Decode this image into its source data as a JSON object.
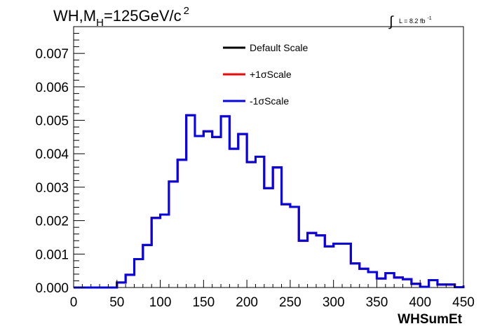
{
  "chart_data": {
    "type": "step-histogram",
    "title_prefix": "WH,M",
    "title_sub": "H",
    "title_suffix": "=125GeV/c",
    "title_sup": "2",
    "lumi_symbol": "∫",
    "lumi_text": "L = 8.2 fb",
    "lumi_sup": "-1",
    "xlabel": "WHSumEt",
    "xlim": [
      0,
      450
    ],
    "ylim": [
      0,
      0.0078
    ],
    "xticks": [
      "0",
      "50",
      "100",
      "150",
      "200",
      "250",
      "300",
      "350",
      "400",
      "450"
    ],
    "yticks": [
      "0.000",
      "0.001",
      "0.002",
      "0.003",
      "0.004",
      "0.005",
      "0.006",
      "0.007"
    ],
    "bin_width": 10,
    "bin_start": 0,
    "legend_position": "top-center",
    "series": [
      {
        "name": "Default Scale",
        "color": "#000000",
        "values": [
          0,
          0,
          0,
          0,
          0,
          0.00015,
          0.00038,
          0.00085,
          0.00127,
          0.00208,
          0.00218,
          0.00317,
          0.00382,
          0.00515,
          0.00453,
          0.00467,
          0.0045,
          0.00512,
          0.00415,
          0.00459,
          0.00375,
          0.00391,
          0.00297,
          0.00359,
          0.00249,
          0.00241,
          0.0014,
          0.00163,
          0.00156,
          0.00123,
          0.00131,
          0.00131,
          0.00072,
          0.00056,
          0.00046,
          0.00027,
          0.00043,
          0.0003,
          0.00025,
          0.00011,
          2e-05,
          0.00022,
          9e-05,
          9e-05,
          1e-05,
          6e-05,
          3e-05
        ]
      },
      {
        "name": "+1σScale",
        "color": "#ff0000",
        "values": [
          0,
          0,
          0,
          0,
          0,
          0.00015,
          0.00038,
          0.00085,
          0.00127,
          0.00208,
          0.00218,
          0.00317,
          0.00382,
          0.00515,
          0.00453,
          0.00467,
          0.0045,
          0.00512,
          0.00415,
          0.00459,
          0.00375,
          0.00391,
          0.00297,
          0.00359,
          0.00249,
          0.00241,
          0.0014,
          0.00163,
          0.00156,
          0.00123,
          0.00131,
          0.00131,
          0.00072,
          0.00056,
          0.00046,
          0.00027,
          0.00043,
          0.0003,
          0.00025,
          0.00011,
          2e-05,
          0.00022,
          9e-05,
          9e-05,
          1e-05,
          6e-05,
          3e-05
        ]
      },
      {
        "name": "-1σScale",
        "color": "#0000ff",
        "values": [
          0,
          0,
          0,
          0,
          0,
          0.00015,
          0.00038,
          0.00085,
          0.00127,
          0.00208,
          0.00218,
          0.00317,
          0.00382,
          0.00515,
          0.00453,
          0.00467,
          0.0045,
          0.00512,
          0.00415,
          0.00459,
          0.00375,
          0.00391,
          0.00297,
          0.00359,
          0.00249,
          0.00241,
          0.0014,
          0.00163,
          0.00156,
          0.00123,
          0.00131,
          0.00131,
          0.00072,
          0.00056,
          0.00046,
          0.00027,
          0.00043,
          0.0003,
          0.00025,
          0.00011,
          2e-05,
          0.00022,
          9e-05,
          9e-05,
          1e-05,
          6e-05,
          3e-05
        ]
      }
    ]
  }
}
